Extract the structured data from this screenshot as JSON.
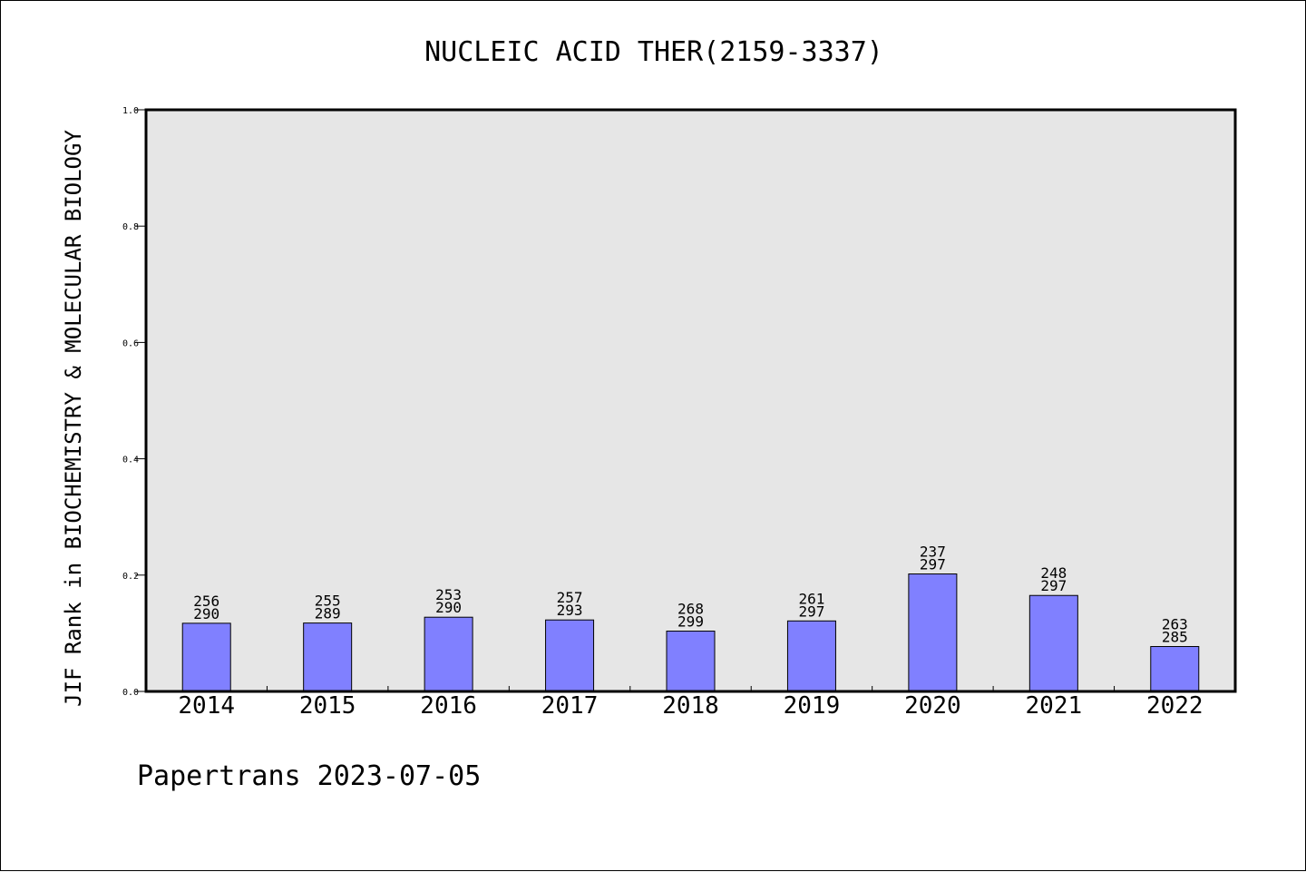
{
  "chart_data": {
    "type": "bar",
    "title": "NUCLEIC ACID THER(2159-3337)",
    "ylabel": "JIF Rank in BIOCHEMISTRY & MOLECULAR BIOLOGY",
    "xlabel": "",
    "ylim": [
      0.0,
      1.0
    ],
    "yticks": [
      "0.0",
      "0.2",
      "0.4",
      "0.6",
      "0.8",
      "1.0"
    ],
    "categories": [
      "2014",
      "2015",
      "2016",
      "2017",
      "2018",
      "2019",
      "2020",
      "2021",
      "2022"
    ],
    "series": [
      {
        "values": [
          0.1172,
          0.1176,
          0.1276,
          0.1229,
          0.1037,
          0.1212,
          0.202,
          0.165,
          0.0772
        ],
        "ranks": [
          "256",
          "255",
          "253",
          "257",
          "268",
          "261",
          "237",
          "248",
          "263"
        ],
        "totals": [
          "290",
          "289",
          "290",
          "293",
          "299",
          "297",
          "297",
          "297",
          "285"
        ]
      }
    ],
    "colors": {
      "bar": "#8080ff",
      "plot_background": "#e6e6e6"
    },
    "grid": false,
    "legend": "none"
  },
  "footer": {
    "source_label": "Papertrans 2023-07-05"
  }
}
